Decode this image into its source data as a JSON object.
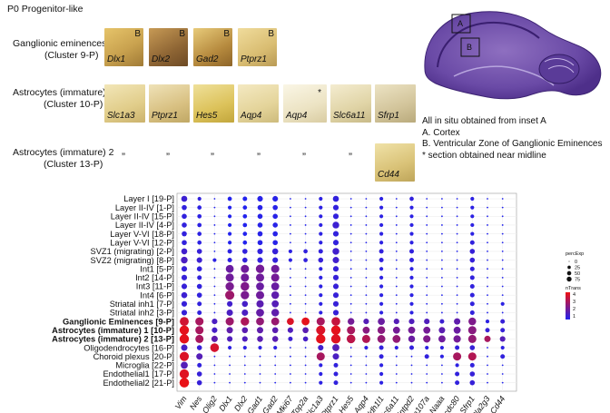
{
  "header": {
    "title": "P0 Progenitor-like"
  },
  "insitu": {
    "rows": [
      {
        "name": "Ganglionic eminences",
        "cluster": "(Cluster 9-P)",
        "tiles": [
          {
            "gene": "Dlx1",
            "letter": "B",
            "color": "#c9a24f"
          },
          {
            "gene": "Dlx2",
            "letter": "B",
            "color": "#9b7440"
          },
          {
            "gene": "Gad2",
            "letter": "B",
            "color": "#b68a3e"
          },
          {
            "gene": "Ptprz1",
            "letter": "B",
            "color": "#d9bd72"
          }
        ]
      },
      {
        "name": "Astrocytes (immature) 1",
        "cluster": "(Cluster 10-P)",
        "tiles": [
          {
            "gene": "Slc1a3",
            "color": "#e1cd8a"
          },
          {
            "gene": "Ptprz1",
            "color": "#d8c081"
          },
          {
            "gene": "Hes5",
            "color": "#dcc25a"
          },
          {
            "gene": "Aqp4",
            "color": "#e4d49a"
          },
          {
            "gene": "Aqp4",
            "star": "*",
            "color": "#ece3c3"
          },
          {
            "gene": "Slc6a11",
            "color": "#e0d4a6"
          },
          {
            "gene": "Sfrp1",
            "color": "#d2c49a"
          }
        ]
      },
      {
        "name": "Astrocytes (immature) 2",
        "cluster": "(Cluster 13-P)",
        "ditto": "”",
        "tiles": [
          {
            "gene": "Cd44",
            "color": "#d9c277"
          }
        ]
      }
    ],
    "notes": [
      "All in situ obtained from inset A",
      "A. Cortex",
      "B. Ventricular Zone of Ganglionic Eminences",
      "* section obtained near midline"
    ],
    "brain_labels": [
      "A",
      "B"
    ]
  },
  "chart_data": {
    "type": "dotplot",
    "genes": [
      "Vim",
      "Nes",
      "Olig2",
      "Dlx1",
      "Dlx2",
      "Gad1",
      "Gad2",
      "Mki67",
      "Top2a",
      "Slc1a3",
      "Ptprz1",
      "Hes5",
      "Aqp4",
      "Aldh1l1",
      "Slc6a11",
      "Entpd2",
      "Fam107a",
      "Naaa",
      "Ccdc80",
      "Sfrp1",
      "Pla2g3",
      "Cd44"
    ],
    "clusters": [
      "Layer I [19-P]",
      "Layer II-IV [1-P]",
      "Layer II-IV [15-P]",
      "Layer II-IV [4-P]",
      "Layer V-VI [18-P]",
      "Layer V-VI [12-P]",
      "SVZ1 (migrating) [2-P]",
      "SVZ2 (migrating) [8-P]",
      "Int1 [5-P]",
      "Int2 [14-P]",
      "Int3 [11-P]",
      "Int4 [6-P]",
      "Striatal inh1 [7-P]",
      "Striatal inh2 [3-P]",
      "Ganglionic Eminences [9-P]",
      "Astrocytes (immature) 1 [10-P]",
      "Astrocytes (immature) 2 [13-P]",
      "Oligodendrocytes [16-P]",
      "Choroid plexus [20-P]",
      "Microglia [22-P]",
      "Endothelial1 [17-P]",
      "Endothelial2 [21-P]"
    ],
    "bold_clusters": [
      "Ganglionic Eminences [9-P]",
      "Astrocytes (immature) 1 [10-P]",
      "Astrocytes (immature) 2 [13-P]"
    ],
    "pct": [
      [
        25,
        5,
        0,
        8,
        10,
        20,
        20,
        0,
        0,
        5,
        25,
        0,
        0,
        5,
        0,
        8,
        0,
        0,
        0,
        5,
        0,
        0
      ],
      [
        15,
        8,
        0,
        5,
        8,
        15,
        15,
        0,
        0,
        5,
        20,
        0,
        0,
        5,
        0,
        5,
        0,
        0,
        0,
        5,
        0,
        0
      ],
      [
        15,
        8,
        0,
        5,
        8,
        15,
        15,
        0,
        0,
        5,
        20,
        0,
        0,
        5,
        0,
        5,
        0,
        0,
        0,
        5,
        0,
        0
      ],
      [
        15,
        8,
        0,
        5,
        8,
        15,
        15,
        0,
        0,
        5,
        35,
        0,
        0,
        5,
        0,
        5,
        0,
        0,
        0,
        5,
        0,
        0
      ],
      [
        15,
        8,
        0,
        5,
        8,
        15,
        15,
        0,
        0,
        5,
        20,
        0,
        0,
        5,
        0,
        5,
        0,
        0,
        0,
        5,
        0,
        0
      ],
      [
        15,
        8,
        0,
        5,
        8,
        15,
        15,
        0,
        0,
        5,
        20,
        0,
        0,
        5,
        0,
        5,
        0,
        0,
        0,
        10,
        0,
        0
      ],
      [
        25,
        15,
        0,
        10,
        15,
        20,
        25,
        5,
        8,
        10,
        35,
        0,
        0,
        10,
        0,
        10,
        0,
        0,
        0,
        15,
        0,
        0
      ],
      [
        35,
        20,
        5,
        10,
        15,
        20,
        20,
        5,
        8,
        15,
        30,
        0,
        0,
        10,
        0,
        10,
        0,
        0,
        0,
        15,
        0,
        0
      ],
      [
        20,
        15,
        0,
        55,
        60,
        65,
        60,
        0,
        0,
        5,
        20,
        0,
        0,
        5,
        0,
        5,
        0,
        0,
        0,
        10,
        0,
        0
      ],
      [
        20,
        10,
        0,
        60,
        60,
        60,
        60,
        0,
        0,
        5,
        20,
        0,
        0,
        5,
        0,
        5,
        0,
        0,
        0,
        10,
        0,
        0
      ],
      [
        20,
        15,
        0,
        65,
        70,
        55,
        55,
        0,
        0,
        5,
        20,
        0,
        0,
        5,
        0,
        5,
        0,
        0,
        0,
        10,
        0,
        0
      ],
      [
        25,
        15,
        0,
        80,
        65,
        60,
        50,
        0,
        0,
        5,
        20,
        0,
        0,
        5,
        0,
        5,
        0,
        0,
        0,
        10,
        0,
        0
      ],
      [
        20,
        10,
        0,
        20,
        25,
        45,
        40,
        0,
        0,
        5,
        20,
        0,
        0,
        5,
        0,
        5,
        0,
        0,
        0,
        10,
        0,
        5
      ],
      [
        20,
        10,
        0,
        30,
        30,
        55,
        50,
        0,
        0,
        5,
        20,
        0,
        0,
        5,
        0,
        5,
        0,
        0,
        0,
        10,
        0,
        0
      ],
      [
        75,
        60,
        20,
        60,
        65,
        55,
        55,
        40,
        55,
        60,
        70,
        35,
        20,
        40,
        20,
        20,
        20,
        10,
        30,
        50,
        5,
        10
      ],
      [
        85,
        60,
        20,
        30,
        25,
        30,
        25,
        20,
        25,
        80,
        85,
        60,
        40,
        50,
        40,
        40,
        40,
        30,
        40,
        60,
        10,
        10
      ],
      [
        85,
        60,
        30,
        20,
        20,
        25,
        25,
        10,
        15,
        85,
        85,
        70,
        60,
        55,
        55,
        35,
        45,
        40,
        45,
        60,
        30,
        20
      ],
      [
        30,
        15,
        70,
        5,
        5,
        5,
        5,
        0,
        0,
        20,
        40,
        0,
        5,
        10,
        5,
        10,
        5,
        5,
        10,
        15,
        0,
        5
      ],
      [
        80,
        30,
        0,
        0,
        0,
        0,
        0,
        0,
        0,
        60,
        30,
        0,
        0,
        10,
        0,
        0,
        10,
        5,
        60,
        60,
        0,
        10
      ],
      [
        40,
        10,
        0,
        0,
        0,
        0,
        0,
        0,
        0,
        5,
        10,
        0,
        0,
        5,
        0,
        0,
        0,
        0,
        5,
        10,
        0,
        0
      ],
      [
        85,
        15,
        0,
        0,
        0,
        0,
        0,
        0,
        0,
        5,
        10,
        0,
        0,
        5,
        0,
        0,
        0,
        0,
        10,
        15,
        0,
        0
      ],
      [
        90,
        15,
        0,
        0,
        0,
        0,
        0,
        0,
        0,
        5,
        10,
        0,
        0,
        5,
        0,
        0,
        0,
        0,
        10,
        15,
        0,
        0
      ]
    ],
    "expr": [
      [
        0.5,
        0.3,
        0,
        0,
        0,
        0.1,
        0.1,
        0,
        0,
        0.2,
        0.3,
        0,
        0,
        0.2,
        0,
        0.3,
        0,
        0,
        0,
        0.2,
        0,
        0
      ],
      [
        0.3,
        0.2,
        0,
        0,
        0,
        0.1,
        0.1,
        0,
        0,
        0.2,
        0.3,
        0,
        0,
        0.2,
        0,
        0.2,
        0,
        0,
        0,
        0.2,
        0,
        0
      ],
      [
        0.3,
        0.2,
        0,
        0,
        0,
        0.1,
        0.1,
        0,
        0,
        0.2,
        0.3,
        0,
        0,
        0.2,
        0,
        0.2,
        0,
        0,
        0,
        0.2,
        0,
        0
      ],
      [
        0.3,
        0.2,
        0,
        0,
        0,
        0.1,
        0.1,
        0,
        0,
        0.2,
        0.5,
        0,
        0,
        0.2,
        0,
        0.2,
        0,
        0,
        0,
        0.2,
        0,
        0
      ],
      [
        0.3,
        0.2,
        0,
        0,
        0,
        0.1,
        0.1,
        0,
        0,
        0.2,
        0.3,
        0,
        0,
        0.2,
        0,
        0.2,
        0,
        0,
        0,
        0.2,
        0,
        0
      ],
      [
        0.3,
        0.2,
        0,
        0,
        0,
        0.1,
        0.1,
        0,
        0,
        0.2,
        0.3,
        0,
        0,
        0.2,
        0,
        0.2,
        0,
        0,
        0,
        0.3,
        0,
        0
      ],
      [
        0.6,
        0.4,
        0,
        0.2,
        0.3,
        0.3,
        0.4,
        0.2,
        0.3,
        0.3,
        0.6,
        0,
        0,
        0.3,
        0,
        0.3,
        0,
        0,
        0,
        0.4,
        0,
        0
      ],
      [
        0.8,
        0.5,
        0.2,
        0.2,
        0.3,
        0.3,
        0.3,
        0.2,
        0.3,
        0.4,
        0.6,
        0,
        0,
        0.3,
        0,
        0.3,
        0,
        0,
        0,
        0.4,
        0,
        0
      ],
      [
        0.4,
        0.3,
        0,
        1.4,
        1.5,
        1.6,
        1.5,
        0,
        0,
        0.2,
        0.4,
        0,
        0,
        0.2,
        0,
        0.2,
        0,
        0,
        0,
        0.3,
        0,
        0
      ],
      [
        0.4,
        0.3,
        0,
        1.5,
        1.5,
        1.5,
        1.6,
        0,
        0,
        0.2,
        0.4,
        0,
        0,
        0.2,
        0,
        0.2,
        0,
        0,
        0,
        0.3,
        0,
        0
      ],
      [
        0.4,
        0.3,
        0,
        1.7,
        1.8,
        1.4,
        1.4,
        0,
        0,
        0.2,
        0.4,
        0,
        0,
        0.2,
        0,
        0.2,
        0,
        0,
        0,
        0.3,
        0,
        0
      ],
      [
        0.5,
        0.3,
        0,
        2.4,
        1.7,
        1.5,
        1.2,
        0,
        0,
        0.2,
        0.4,
        0,
        0,
        0.2,
        0,
        0.2,
        0,
        0,
        0,
        0.3,
        0,
        0
      ],
      [
        0.4,
        0.3,
        0,
        0.6,
        0.7,
        1.1,
        1.0,
        0,
        0,
        0.2,
        0.4,
        0,
        0,
        0.2,
        0,
        0.2,
        0,
        0,
        0,
        0.3,
        0,
        0.2
      ],
      [
        0.4,
        0.3,
        0,
        0.8,
        0.8,
        1.3,
        1.2,
        0,
        0,
        0.2,
        0.4,
        0,
        0,
        0.2,
        0,
        0.2,
        0,
        0,
        0,
        0.3,
        0,
        0
      ],
      [
        3.4,
        2.6,
        0.8,
        2.4,
        2.7,
        2.2,
        2.3,
        3.6,
        3.8,
        2.6,
        3.2,
        1.6,
        1.0,
        1.4,
        1.0,
        0.9,
        0.9,
        0.5,
        1.2,
        1.8,
        0.2,
        0.4
      ],
      [
        3.8,
        2.6,
        0.7,
        1.2,
        1.1,
        1.2,
        1.1,
        0.9,
        1.1,
        3.6,
        3.8,
        2.6,
        2.0,
        2.0,
        1.6,
        1.6,
        1.6,
        1.1,
        1.4,
        2.0,
        0.4,
        0.4
      ],
      [
        3.8,
        2.6,
        1.2,
        0.9,
        0.9,
        1.1,
        1.1,
        0.5,
        0.7,
        3.8,
        3.7,
        3.0,
        2.8,
        2.2,
        2.2,
        1.4,
        1.8,
        1.5,
        1.6,
        2.2,
        2.6,
        1.0
      ],
      [
        0.7,
        0.4,
        3.5,
        0.2,
        0.2,
        0.2,
        0.2,
        0,
        0,
        0.6,
        1.0,
        0,
        0.2,
        0.3,
        0.2,
        0.3,
        0.2,
        0.2,
        0.3,
        0.4,
        0,
        0.2
      ],
      [
        3.6,
        1.0,
        0,
        0,
        0,
        0,
        0,
        0,
        0,
        2.6,
        0.8,
        0,
        0,
        0.3,
        0,
        0,
        0.3,
        0.2,
        2.6,
        2.8,
        0,
        0.3
      ],
      [
        1.0,
        0.3,
        0,
        0,
        0,
        0,
        0,
        0,
        0,
        0.2,
        0.3,
        0,
        0,
        0.2,
        0,
        0,
        0,
        0,
        0.2,
        0.3,
        0,
        0
      ],
      [
        3.7,
        0.4,
        0,
        0,
        0,
        0,
        0,
        0,
        0,
        0.2,
        0.3,
        0,
        0,
        0.2,
        0,
        0,
        0,
        0,
        0.3,
        0.4,
        0,
        0
      ],
      [
        3.9,
        0.4,
        0,
        0,
        0,
        0,
        0,
        0,
        0,
        0.2,
        0.3,
        0,
        0,
        0.2,
        0,
        0,
        0,
        0,
        0.3,
        0.4,
        0,
        0
      ]
    ],
    "legend": {
      "size_title": "percExp",
      "size_values": [
        "0",
        "25",
        "50",
        "75"
      ],
      "color_title": "nTrans",
      "color_values": [
        "4",
        "3",
        "2",
        "1"
      ],
      "color_low": "#2222ee",
      "color_high": "#ee1111"
    }
  }
}
